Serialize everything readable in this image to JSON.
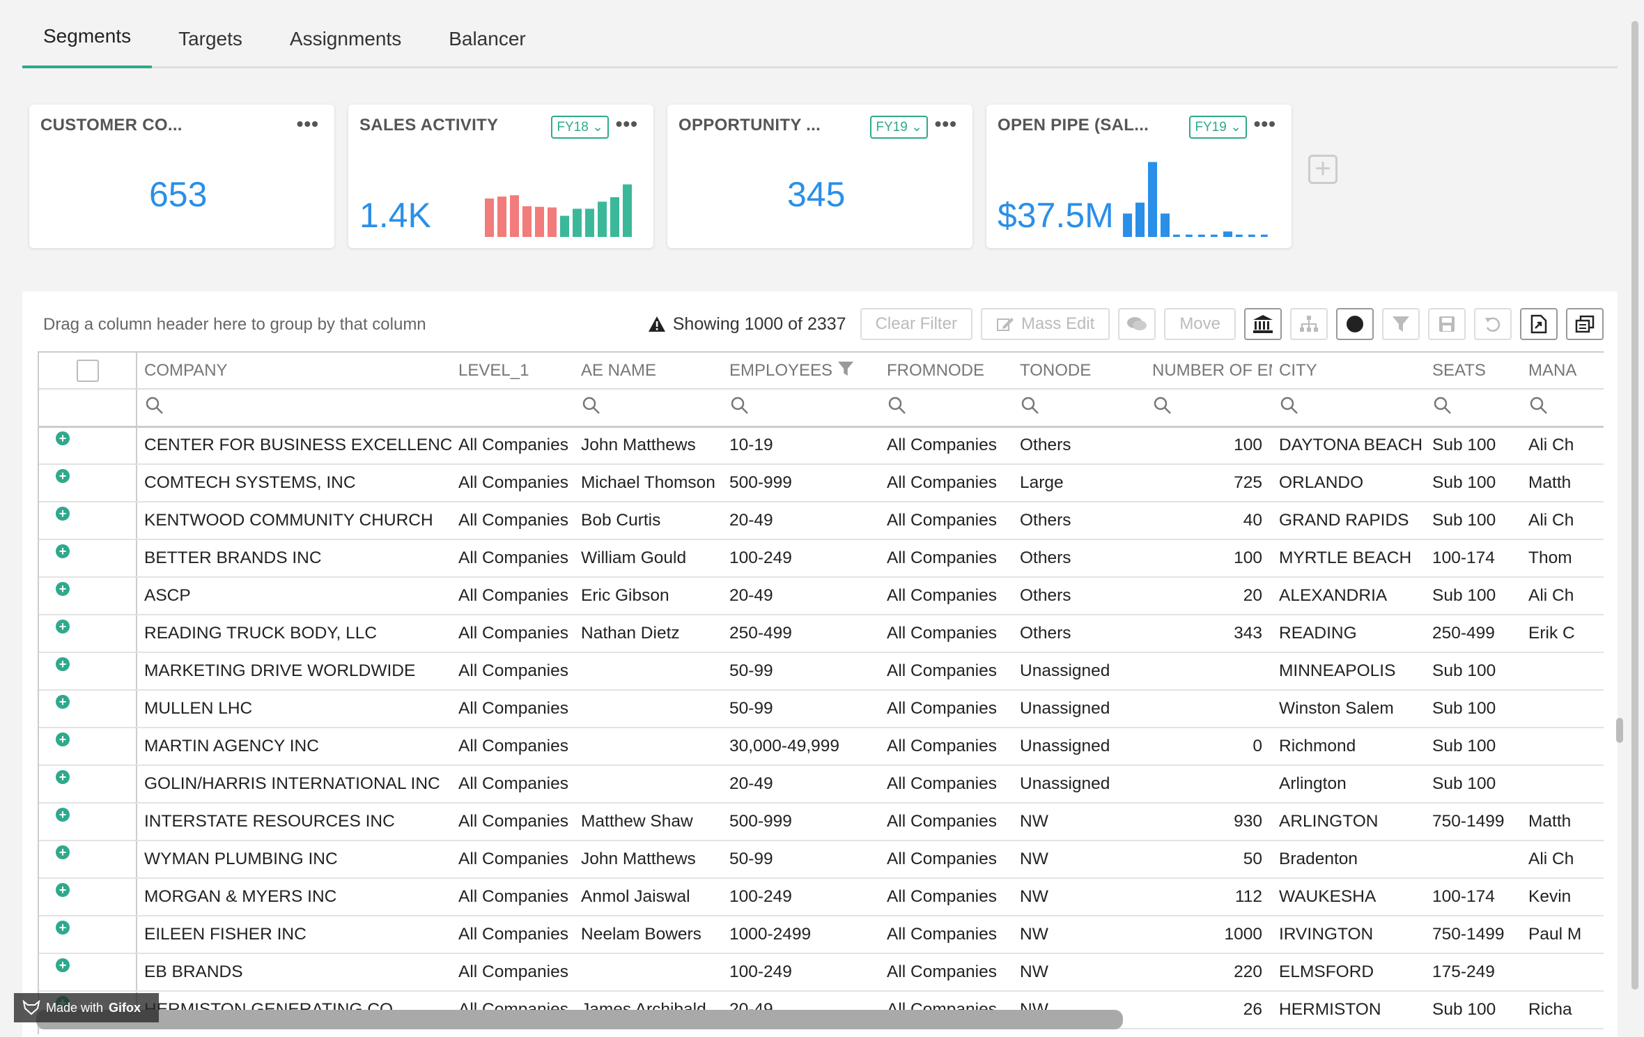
{
  "tabs": [
    {
      "label": "Segments",
      "active": true
    },
    {
      "label": "Targets"
    },
    {
      "label": "Assignments"
    },
    {
      "label": "Balancer"
    }
  ],
  "cards": [
    {
      "title": "CUSTOMER CO...",
      "value": "653",
      "menu": "•••"
    },
    {
      "title": "SALES ACTIVITY",
      "value": "1.4K",
      "fy": "FY18",
      "menu": "•••"
    },
    {
      "title": "OPPORTUNITY ...",
      "value": "345",
      "fy": "FY19",
      "menu": "•••"
    },
    {
      "title": "OPEN PIPE (SAL...",
      "value": "$37.5M",
      "fy": "FY19",
      "menu": "•••"
    }
  ],
  "sales_activity_bars": [
    0.6,
    0.63,
    0.65,
    0.48,
    0.47,
    0.46,
    0.33,
    0.44,
    0.44,
    0.55,
    0.62,
    0.82
  ],
  "open_pipe_bars": [
    0.3,
    0.44,
    0.96,
    0.3,
    0.03,
    0.03,
    0.03,
    0.03,
    0.07,
    0.03,
    0.03,
    0.03
  ],
  "colors": {
    "accent": "#2fa98c",
    "value_blue": "#2a8fe8",
    "bar_red": "#f27b7b",
    "bar_green": "#3bb89a",
    "bar_blue": "#2a8fe8"
  },
  "grid": {
    "group_hint": "Drag a column header here to group by that column",
    "showing": "Showing 1000 of 2337",
    "clear_filter": "Clear Filter",
    "mass_edit": "Mass Edit",
    "move": "Move",
    "columns": [
      "COMPANY",
      "LEVEL_1",
      "AE NAME",
      "EMPLOYEES",
      "FROMNODE",
      "TONODE",
      "NUMBER OF EMP",
      "CITY",
      "SEATS",
      "MANA"
    ],
    "rows": [
      [
        "CENTER FOR BUSINESS EXCELLENCE",
        "All Companies",
        "John Matthews",
        "10-19",
        "All Companies",
        "Others",
        "100",
        "DAYTONA BEACH",
        "Sub 100",
        "Ali Ch"
      ],
      [
        "COMTECH SYSTEMS, INC",
        "All Companies",
        "Michael Thomson",
        "500-999",
        "All Companies",
        "Large",
        "725",
        "ORLANDO",
        "Sub 100",
        "Matth"
      ],
      [
        "KENTWOOD COMMUNITY CHURCH",
        "All Companies",
        "Bob Curtis",
        "20-49",
        "All Companies",
        "Others",
        "40",
        "GRAND RAPIDS",
        "Sub 100",
        "Ali Ch"
      ],
      [
        "BETTER BRANDS INC",
        "All Companies",
        "William Gould",
        "100-249",
        "All Companies",
        "Others",
        "100",
        "MYRTLE BEACH",
        "100-174",
        "Thom"
      ],
      [
        "ASCP",
        "All Companies",
        "Eric Gibson",
        "20-49",
        "All Companies",
        "Others",
        "20",
        "ALEXANDRIA",
        "Sub 100",
        "Ali Ch"
      ],
      [
        "READING TRUCK BODY, LLC",
        "All Companies",
        "Nathan Dietz",
        "250-499",
        "All Companies",
        "Others",
        "343",
        "READING",
        "250-499",
        "Erik C"
      ],
      [
        "MARKETING DRIVE WORLDWIDE",
        "All Companies",
        "",
        "50-99",
        "All Companies",
        "Unassigned",
        "",
        "MINNEAPOLIS",
        "Sub 100",
        ""
      ],
      [
        "MULLEN LHC",
        "All Companies",
        "",
        "50-99",
        "All Companies",
        "Unassigned",
        "",
        "Winston Salem",
        "Sub 100",
        ""
      ],
      [
        "MARTIN AGENCY INC",
        "All Companies",
        "",
        "30,000-49,999",
        "All Companies",
        "Unassigned",
        "0",
        "Richmond",
        "Sub 100",
        ""
      ],
      [
        "GOLIN/HARRIS INTERNATIONAL INC",
        "All Companies",
        "",
        "20-49",
        "All Companies",
        "Unassigned",
        "",
        "Arlington",
        "Sub 100",
        ""
      ],
      [
        "INTERSTATE RESOURCES INC",
        "All Companies",
        "Matthew Shaw",
        "500-999",
        "All Companies",
        "NW",
        "930",
        "ARLINGTON",
        "750-1499",
        "Matth"
      ],
      [
        "WYMAN PLUMBING INC",
        "All Companies",
        "John Matthews",
        "50-99",
        "All Companies",
        "NW",
        "50",
        "Bradenton",
        "",
        "Ali Ch"
      ],
      [
        "MORGAN & MYERS INC",
        "All Companies",
        "Anmol Jaiswal",
        "100-249",
        "All Companies",
        "NW",
        "112",
        "WAUKESHA",
        "100-174",
        "Kevin"
      ],
      [
        "EILEEN FISHER INC",
        "All Companies",
        "Neelam Bowers",
        "1000-2499",
        "All Companies",
        "NW",
        "1000",
        "IRVINGTON",
        "750-1499",
        "Paul M"
      ],
      [
        "EB BRANDS",
        "All Companies",
        "",
        "100-249",
        "All Companies",
        "NW",
        "220",
        "ELMSFORD",
        "175-249",
        ""
      ],
      [
        "HERMISTON GENERATING CO",
        "All Companies",
        "James Archibald",
        "20-49",
        "All Companies",
        "NW",
        "26",
        "HERMISTON",
        "Sub 100",
        "Richa"
      ]
    ]
  },
  "watermark": {
    "prefix": "Made with",
    "brand": "Gifox"
  }
}
